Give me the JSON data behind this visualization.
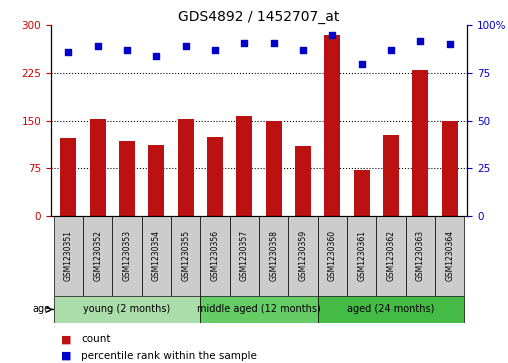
{
  "title": "GDS4892 / 1452707_at",
  "samples": [
    "GSM1230351",
    "GSM1230352",
    "GSM1230353",
    "GSM1230354",
    "GSM1230355",
    "GSM1230356",
    "GSM1230357",
    "GSM1230358",
    "GSM1230359",
    "GSM1230360",
    "GSM1230361",
    "GSM1230362",
    "GSM1230363",
    "GSM1230364"
  ],
  "counts": [
    122,
    152,
    118,
    112,
    152,
    125,
    157,
    150,
    110,
    285,
    73,
    127,
    230,
    150
  ],
  "percentiles": [
    86,
    89,
    87,
    84,
    89,
    87,
    91,
    91,
    87,
    95,
    80,
    87,
    92,
    90
  ],
  "bar_color": "#bb1111",
  "dot_color": "#0000cc",
  "left_ylim": [
    0,
    300
  ],
  "right_ylim": [
    0,
    100
  ],
  "left_yticks": [
    0,
    75,
    150,
    225,
    300
  ],
  "right_yticks": [
    0,
    25,
    50,
    75,
    100
  ],
  "right_yticklabels": [
    "0",
    "25",
    "50",
    "75",
    "100%"
  ],
  "groups": [
    {
      "label": "young (2 months)",
      "start": 0,
      "end": 5
    },
    {
      "label": "middle aged (12 months)",
      "start": 5,
      "end": 9
    },
    {
      "label": "aged (24 months)",
      "start": 9,
      "end": 14
    }
  ],
  "group_colors": [
    "#aaddaa",
    "#66cc66",
    "#44bb44"
  ],
  "sample_box_color": "#cccccc",
  "bar_color_left": "#cc0000",
  "dot_color_right": "#0000cc",
  "bg_color": "#ffffff",
  "title_fontsize": 10,
  "tick_fontsize": 7.5,
  "sample_fontsize": 5.5,
  "group_fontsize": 7
}
